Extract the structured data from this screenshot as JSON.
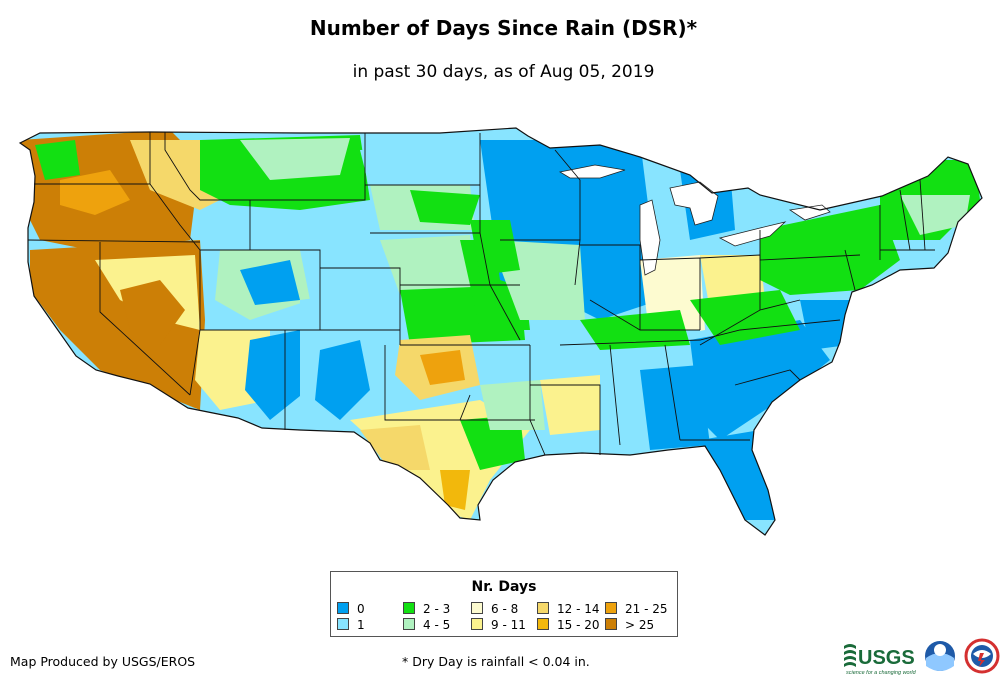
{
  "title": "Number of Days Since Rain (DSR)*",
  "subtitle": "in past 30 days, as of Aug 05, 2019",
  "legend": {
    "title": "Nr. Days",
    "items": [
      {
        "label": "0",
        "color": "#00a0f0"
      },
      {
        "label": "1",
        "color": "#88e4ff"
      },
      {
        "label": "2 - 3",
        "color": "#12e012"
      },
      {
        "label": "4 - 5",
        "color": "#b0f2c0"
      },
      {
        "label": "6 - 8",
        "color": "#fdfbd0"
      },
      {
        "label": "9 - 11",
        "color": "#fbf28e"
      },
      {
        "label": "12 - 14",
        "color": "#f5d86a"
      },
      {
        "label": "15 - 20",
        "color": "#f2b80c"
      },
      {
        "label": "21 - 25",
        "color": "#eea20d"
      },
      {
        "label": "> 25",
        "color": "#cc7f06"
      }
    ]
  },
  "credit": "Map Produced by USGS/EROS",
  "footnote": "* Dry Day is rainfall < 0.04 in.",
  "logos": {
    "usgs": {
      "text": "USGS",
      "tagline": "science for a changing world",
      "color": "#1a6b3a"
    },
    "noaa": {
      "text": "NOAA",
      "color": "#1e5aa8"
    },
    "nws": {
      "text": "NWS",
      "color": "#d43030"
    }
  }
}
